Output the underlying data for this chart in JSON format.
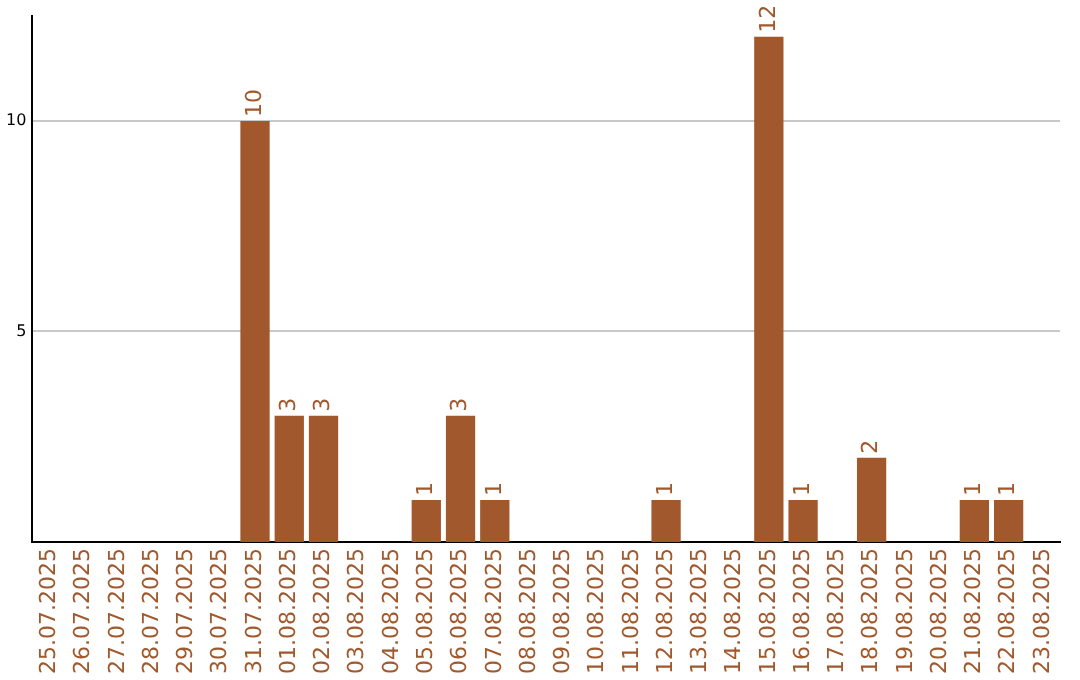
{
  "chart_data": {
    "type": "bar",
    "categories": [
      "25.07.2025",
      "26.07.2025",
      "27.07.2025",
      "28.07.2025",
      "29.07.2025",
      "30.07.2025",
      "31.07.2025",
      "01.08.2025",
      "02.08.2025",
      "03.08.2025",
      "04.08.2025",
      "05.08.2025",
      "06.08.2025",
      "07.08.2025",
      "08.08.2025",
      "09.08.2025",
      "10.08.2025",
      "11.08.2025",
      "12.08.2025",
      "13.08.2025",
      "14.08.2025",
      "15.08.2025",
      "16.08.2025",
      "17.08.2025",
      "18.08.2025",
      "19.08.2025",
      "20.08.2025",
      "21.08.2025",
      "22.08.2025",
      "23.08.2025"
    ],
    "values": [
      0,
      0,
      0,
      0,
      0,
      0,
      10,
      3,
      3,
      0,
      0,
      1,
      3,
      1,
      0,
      0,
      0,
      0,
      1,
      0,
      0,
      12,
      1,
      0,
      2,
      0,
      0,
      1,
      1,
      0
    ],
    "value_labels": [
      null,
      null,
      null,
      null,
      null,
      null,
      "10",
      "3",
      "3",
      null,
      null,
      "1",
      "3",
      "1",
      null,
      null,
      null,
      null,
      "1",
      null,
      null,
      "12",
      "1",
      null,
      "2",
      null,
      null,
      "1",
      "1",
      null
    ],
    "color": "#a0582c",
    "ylim": [
      0,
      12.5
    ],
    "yticks": [
      5,
      10
    ],
    "grid": "y",
    "legend": false
  }
}
